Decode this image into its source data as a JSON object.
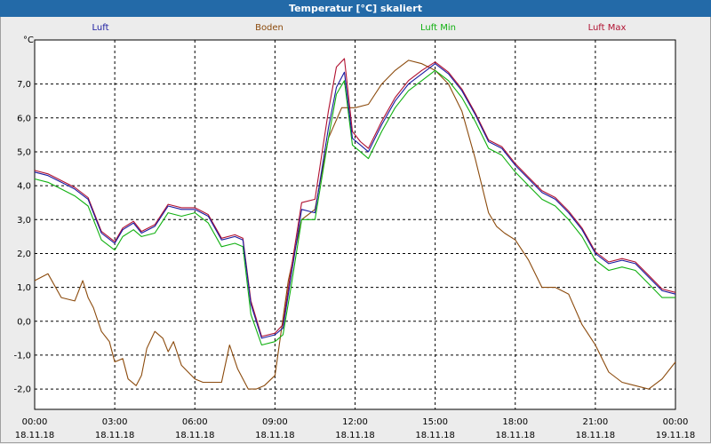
{
  "window": {
    "title": "Temperatur [°C] skaliert"
  },
  "colors": {
    "luft": "#1a1aa0",
    "boden": "#8b4a0c",
    "luft_min": "#10b010",
    "luft_max": "#b01030",
    "grid": "#000000",
    "background": "#ffffff"
  },
  "chart_data": {
    "type": "line",
    "title": "Temperatur [°C] skaliert",
    "ylabel": "°C",
    "xlabel": "",
    "ylim": [
      -2.6,
      8.3
    ],
    "xlim": [
      0,
      24
    ],
    "grid": true,
    "y_ticks": [
      -2,
      -1,
      0,
      1,
      2,
      3,
      4,
      5,
      6,
      7
    ],
    "y_tick_labels": [
      "-2,0",
      "-1,0",
      "0,0",
      "1,0",
      "2,0",
      "3,0",
      "4,0",
      "5,0",
      "6,0",
      "7,0"
    ],
    "x_ticks": [
      {
        "x": 0,
        "time": "00:00",
        "date": "18.11.18"
      },
      {
        "x": 3,
        "time": "03:00",
        "date": "18.11.18"
      },
      {
        "x": 6,
        "time": "06:00",
        "date": "18.11.18"
      },
      {
        "x": 9,
        "time": "09:00",
        "date": "18.11.18"
      },
      {
        "x": 12,
        "time": "12:00",
        "date": "18.11.18"
      },
      {
        "x": 15,
        "time": "15:00",
        "date": "18.11.18"
      },
      {
        "x": 18,
        "time": "18:00",
        "date": "18.11.18"
      },
      {
        "x": 21,
        "time": "21:00",
        "date": "18.11.18"
      },
      {
        "x": 24,
        "time": "00:00",
        "date": "19.11.18"
      }
    ],
    "series": [
      {
        "name": "Luft",
        "color": "#1a1aa0",
        "x": [
          0,
          0.5,
          1,
          1.5,
          2,
          2.5,
          3,
          3.3,
          3.7,
          4,
          4.5,
          5,
          5.5,
          6,
          6.5,
          7,
          7.5,
          7.8,
          8.1,
          8.5,
          9,
          9.3,
          9.6,
          10,
          10.5,
          11,
          11.3,
          11.6,
          11.9,
          12.2,
          12.5,
          13,
          13.5,
          14,
          14.5,
          15,
          15.5,
          16,
          16.5,
          17,
          17.5,
          18,
          18.5,
          19,
          19.5,
          20,
          20.5,
          21,
          21.5,
          22,
          22.5,
          23,
          23.5,
          24
        ],
        "y": [
          4.4,
          4.3,
          4.1,
          3.9,
          3.6,
          2.6,
          2.3,
          2.7,
          2.9,
          2.6,
          2.8,
          3.4,
          3.3,
          3.3,
          3.1,
          2.4,
          2.5,
          2.4,
          0.5,
          -0.5,
          -0.4,
          -0.2,
          1.3,
          3.3,
          3.2,
          5.7,
          6.9,
          7.35,
          5.4,
          5.2,
          5.0,
          5.8,
          6.5,
          7.0,
          7.3,
          7.6,
          7.3,
          6.8,
          6.1,
          5.3,
          5.1,
          4.6,
          4.2,
          3.8,
          3.6,
          3.2,
          2.7,
          2.0,
          1.7,
          1.8,
          1.7,
          1.3,
          0.9,
          0.8
        ]
      },
      {
        "name": "Boden",
        "color": "#8b4a0c",
        "x": [
          0,
          0.5,
          1,
          1.5,
          1.8,
          2,
          2.2,
          2.5,
          2.8,
          3,
          3.3,
          3.5,
          3.8,
          4,
          4.2,
          4.5,
          4.8,
          5,
          5.2,
          5.5,
          6,
          6.3,
          6.6,
          7,
          7.3,
          7.6,
          8,
          8.3,
          8.6,
          9,
          9.5,
          10,
          10.5,
          11,
          11.5,
          12,
          12.5,
          13,
          13.5,
          14,
          14.5,
          15,
          15.5,
          16,
          16.5,
          17,
          17.3,
          17.6,
          18,
          18.5,
          19,
          19.5,
          20,
          20.5,
          21,
          21.5,
          22,
          22.5,
          23,
          23.5,
          24
        ],
        "y": [
          1.2,
          1.4,
          0.7,
          0.6,
          1.2,
          0.7,
          0.4,
          -0.3,
          -0.6,
          -1.2,
          -1.1,
          -1.7,
          -1.9,
          -1.6,
          -0.8,
          -0.3,
          -0.5,
          -0.9,
          -0.6,
          -1.3,
          -1.7,
          -1.8,
          -1.8,
          -1.8,
          -0.7,
          -1.4,
          -2.0,
          -2.0,
          -1.9,
          -1.6,
          1.2,
          3.0,
          3.3,
          5.4,
          6.3,
          6.3,
          6.4,
          7.0,
          7.4,
          7.7,
          7.6,
          7.4,
          7.0,
          6.2,
          4.8,
          3.2,
          2.8,
          2.6,
          2.4,
          1.8,
          1.0,
          1.0,
          0.8,
          -0.1,
          -0.7,
          -1.5,
          -1.8,
          -1.9,
          -2.0,
          -1.7,
          -1.2
        ]
      },
      {
        "name": "Luft Min",
        "color": "#10b010",
        "x": [
          0,
          0.5,
          1,
          1.5,
          2,
          2.5,
          3,
          3.3,
          3.7,
          4,
          4.5,
          5,
          5.5,
          6,
          6.5,
          7,
          7.5,
          7.8,
          8.1,
          8.5,
          9,
          9.3,
          9.6,
          10,
          10.5,
          11,
          11.3,
          11.6,
          11.9,
          12.2,
          12.5,
          13,
          13.5,
          14,
          14.5,
          15,
          15.5,
          16,
          16.5,
          17,
          17.5,
          18,
          18.5,
          19,
          19.5,
          20,
          20.5,
          21,
          21.5,
          22,
          22.5,
          23,
          23.5,
          24
        ],
        "y": [
          4.2,
          4.1,
          3.9,
          3.7,
          3.4,
          2.4,
          2.1,
          2.5,
          2.7,
          2.5,
          2.6,
          3.2,
          3.1,
          3.2,
          2.9,
          2.2,
          2.3,
          2.2,
          0.2,
          -0.7,
          -0.6,
          -0.4,
          1.0,
          3.0,
          3.0,
          5.4,
          6.7,
          7.1,
          5.2,
          5.0,
          4.8,
          5.6,
          6.3,
          6.8,
          7.1,
          7.4,
          7.1,
          6.6,
          5.9,
          5.1,
          4.9,
          4.4,
          4.0,
          3.6,
          3.4,
          3.0,
          2.5,
          1.8,
          1.5,
          1.6,
          1.5,
          1.1,
          0.7,
          0.7
        ]
      },
      {
        "name": "Luft Max",
        "color": "#b01030",
        "x": [
          0,
          0.5,
          1,
          1.5,
          2,
          2.5,
          3,
          3.3,
          3.7,
          4,
          4.5,
          5,
          5.5,
          6,
          6.5,
          7,
          7.5,
          7.8,
          8.1,
          8.5,
          9,
          9.3,
          9.6,
          10,
          10.5,
          11,
          11.3,
          11.6,
          11.9,
          12.2,
          12.5,
          13,
          13.5,
          14,
          14.5,
          15,
          15.5,
          16,
          16.5,
          17,
          17.5,
          18,
          18.5,
          19,
          19.5,
          20,
          20.5,
          21,
          21.5,
          22,
          22.5,
          23,
          23.5,
          24
        ],
        "y": [
          4.45,
          4.35,
          4.15,
          3.95,
          3.65,
          2.65,
          2.35,
          2.75,
          2.95,
          2.65,
          2.85,
          3.45,
          3.35,
          3.35,
          3.15,
          2.45,
          2.55,
          2.45,
          0.6,
          -0.45,
          -0.35,
          -0.1,
          1.5,
          3.5,
          3.6,
          6.2,
          7.5,
          7.75,
          5.6,
          5.3,
          5.1,
          5.9,
          6.6,
          7.1,
          7.4,
          7.65,
          7.35,
          6.85,
          6.15,
          5.35,
          5.15,
          4.65,
          4.25,
          3.85,
          3.65,
          3.25,
          2.75,
          2.05,
          1.75,
          1.85,
          1.75,
          1.35,
          0.95,
          0.85
        ]
      }
    ]
  }
}
